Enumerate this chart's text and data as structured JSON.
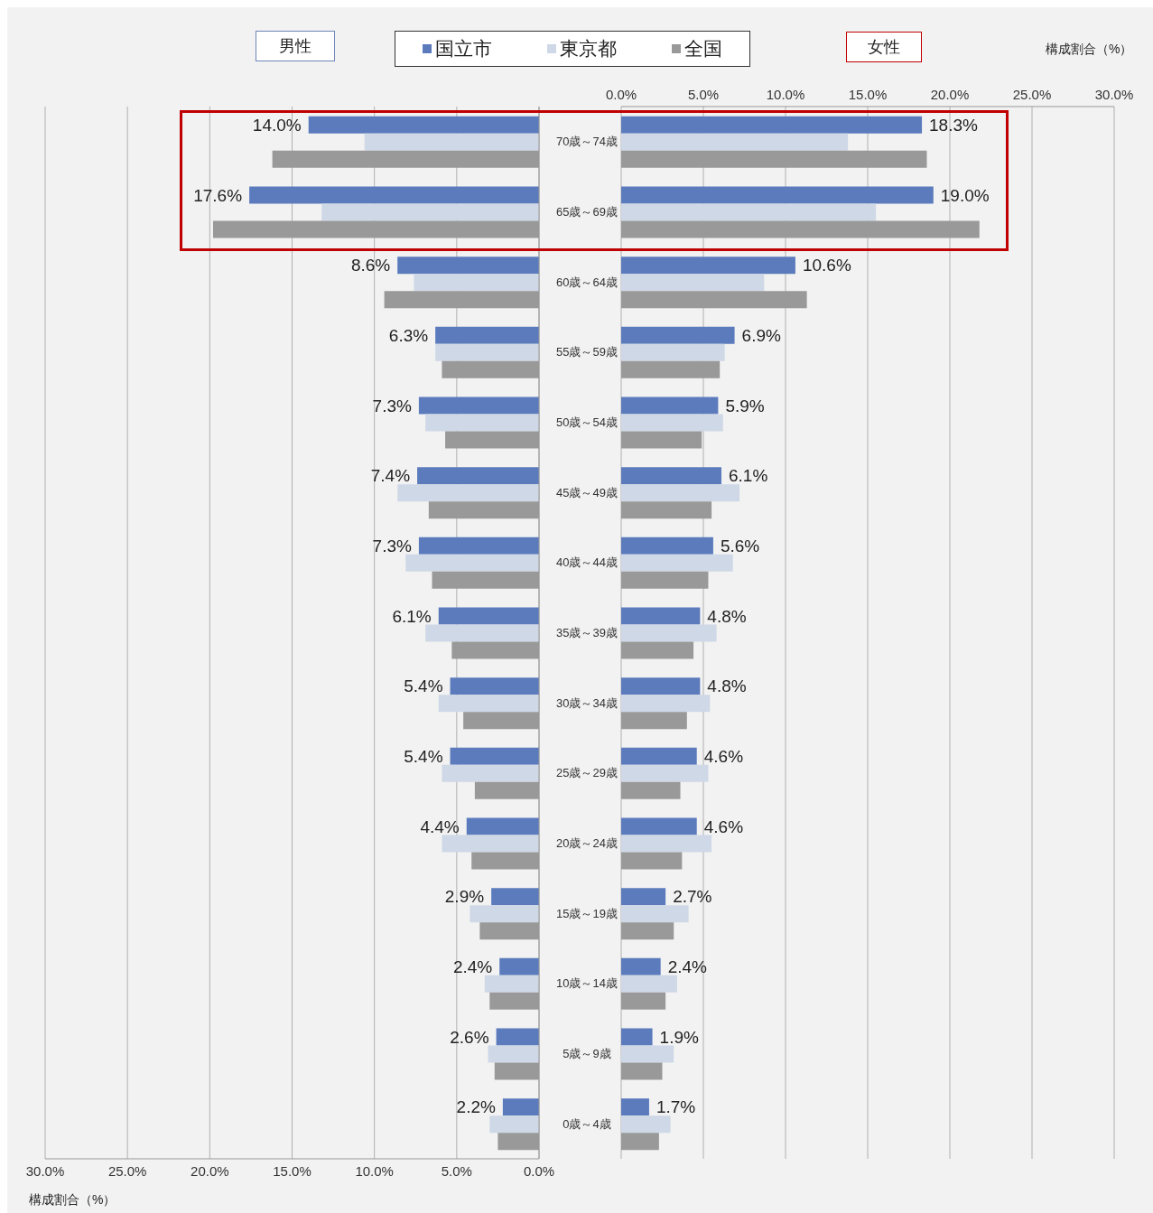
{
  "chart_data": [
    {
      "type": "bar",
      "orientation": "horizontal",
      "title": "男性",
      "xlabel": "構成割合（%）",
      "categories": [
        "70歳～74歳",
        "65歳～69歳",
        "60歳～64歳",
        "55歳～59歳",
        "50歳～54歳",
        "45歳～49歳",
        "40歳～44歳",
        "35歳～39歳",
        "30歳～34歳",
        "25歳～29歳",
        "20歳～24歳",
        "15歳～19歳",
        "10歳～14歳",
        "5歳～9歳",
        "0歳～4歳"
      ],
      "xlim": [
        30,
        0
      ],
      "xticks": [
        {
          "value": 30,
          "label": "30.0%"
        },
        {
          "value": 25,
          "label": "25.0%"
        },
        {
          "value": 20,
          "label": "20.0%"
        },
        {
          "value": 15,
          "label": "15.0%"
        },
        {
          "value": 10,
          "label": "10.0%"
        },
        {
          "value": 5,
          "label": "5.0%"
        },
        {
          "value": 0,
          "label": "0.0%"
        }
      ],
      "grid": "x",
      "legend": "top",
      "series": [
        {
          "name": "国立市",
          "color": "#5b7bbd",
          "values": [
            14.0,
            17.6,
            8.6,
            6.3,
            7.3,
            7.4,
            7.3,
            6.1,
            5.4,
            5.4,
            4.4,
            2.9,
            2.4,
            2.6,
            2.2
          ],
          "value_labels": [
            "14.0%",
            "17.6%",
            "8.6%",
            "6.3%",
            "7.3%",
            "7.4%",
            "7.3%",
            "6.1%",
            "5.4%",
            "5.4%",
            "4.4%",
            "2.9%",
            "2.4%",
            "2.6%",
            "2.2%"
          ]
        },
        {
          "name": "東京都",
          "color": "#cfd8e6",
          "values": [
            10.6,
            13.2,
            7.6,
            6.3,
            6.9,
            8.6,
            8.1,
            6.9,
            6.1,
            5.9,
            5.9,
            4.2,
            3.3,
            3.1,
            3.0
          ]
        },
        {
          "name": "全国",
          "color": "#999999",
          "values": [
            16.2,
            19.8,
            9.4,
            5.9,
            5.7,
            6.7,
            6.5,
            5.3,
            4.6,
            3.9,
            4.1,
            3.6,
            3.0,
            2.7,
            2.5
          ]
        }
      ]
    },
    {
      "type": "bar",
      "orientation": "horizontal",
      "title": "女性",
      "x2label": "構成割合（%）",
      "categories": [
        null,
        null,
        null,
        null,
        null,
        null,
        null,
        null,
        null,
        null,
        null,
        null,
        null,
        null,
        null
      ],
      "tick_labels": "x",
      "x2lim": [
        0,
        30
      ],
      "x2ticks": [
        {
          "value": 0,
          "label": "0.0%"
        },
        {
          "value": 5,
          "label": "5.0%"
        },
        {
          "value": 10,
          "label": "10.0%"
        },
        {
          "value": 15,
          "label": "15.0%"
        },
        {
          "value": 20,
          "label": "20.0%"
        },
        {
          "value": 25,
          "label": "25.0%"
        },
        {
          "value": 30,
          "label": "30.0%"
        }
      ],
      "grid": "x",
      "series": [
        {
          "color": "#5b7bbd",
          "values": [
            18.3,
            19.0,
            10.6,
            6.9,
            5.9,
            6.1,
            5.6,
            4.8,
            4.8,
            4.6,
            4.6,
            2.7,
            2.4,
            1.9,
            1.7
          ],
          "value_labels": [
            "18.3%",
            "19.0%",
            "10.6%",
            "6.9%",
            "5.9%",
            "6.1%",
            "5.6%",
            "4.8%",
            "4.8%",
            "4.6%",
            "4.6%",
            "2.7%",
            "2.4%",
            "1.9%",
            "1.7%"
          ]
        },
        {
          "color": "#cfd8e6",
          "values": [
            13.8,
            15.5,
            8.7,
            6.3,
            6.2,
            7.2,
            6.8,
            5.8,
            5.4,
            5.3,
            5.5,
            4.1,
            3.4,
            3.2,
            3.0
          ]
        },
        {
          "color": "#999999",
          "values": [
            18.6,
            21.8,
            11.3,
            6.0,
            4.9,
            5.5,
            5.3,
            4.4,
            4.0,
            3.6,
            3.7,
            3.2,
            2.7,
            2.5,
            2.3
          ]
        }
      ]
    }
  ]
}
